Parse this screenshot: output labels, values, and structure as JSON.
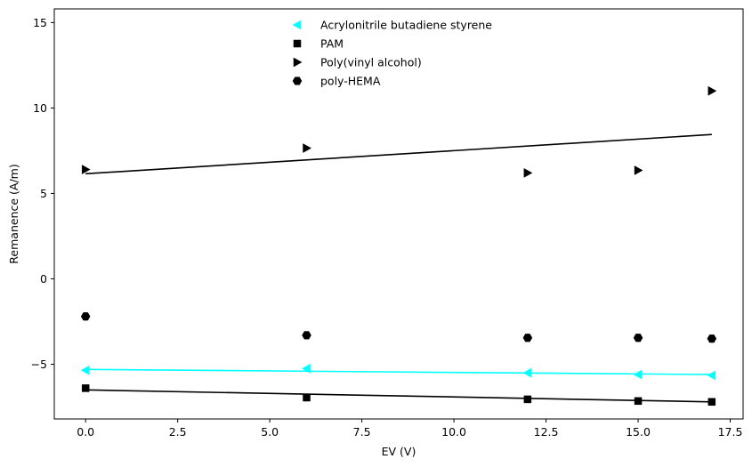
{
  "chart_data": {
    "type": "scatter",
    "xlabel": "EV (V)",
    "ylabel": "Remanence (A/m)",
    "xlim": [
      -0.85,
      17.85
    ],
    "ylim": [
      -8.2,
      15.8
    ],
    "xticks": [
      "0.0",
      "2.5",
      "5.0",
      "7.5",
      "10.0",
      "12.5",
      "15.0",
      "17.5"
    ],
    "xtick_values": [
      0,
      2.5,
      5,
      7.5,
      10,
      12.5,
      15,
      17.5
    ],
    "yticks": [
      "−5",
      "0",
      "5",
      "10",
      "15"
    ],
    "ytick_values": [
      -5,
      0,
      5,
      10,
      15
    ],
    "grid": false,
    "legend_position": "top-center",
    "series": [
      {
        "name": "Acrylonitrile butadiene styrene",
        "marker": "triangle-left",
        "color": "#00ffff",
        "x": [
          0,
          6,
          12,
          15,
          17
        ],
        "y": [
          -5.35,
          -5.25,
          -5.5,
          -5.6,
          -5.65
        ],
        "fit": {
          "x": [
            0,
            17
          ],
          "y": [
            -5.3,
            -5.6
          ],
          "color": "#00ffff"
        }
      },
      {
        "name": "PAM",
        "marker": "square",
        "color": "#000000",
        "x": [
          0,
          6,
          12,
          15,
          17
        ],
        "y": [
          -6.4,
          -6.95,
          -7.05,
          -7.15,
          -7.2
        ],
        "fit": {
          "x": [
            0,
            17
          ],
          "y": [
            -6.5,
            -7.2
          ],
          "color": "#000000"
        }
      },
      {
        "name": "Poly(vinyl alcohol)",
        "marker": "triangle-right",
        "color": "#000000",
        "x": [
          0,
          6,
          12,
          15,
          17
        ],
        "y": [
          6.4,
          7.65,
          6.2,
          6.35,
          11.0
        ],
        "fit": {
          "x": [
            0,
            17
          ],
          "y": [
            6.15,
            8.45
          ],
          "color": "#000000"
        }
      },
      {
        "name": "poly-HEMA",
        "marker": "hexagon",
        "color": "#000000",
        "x": [
          0,
          6,
          12,
          15,
          17
        ],
        "y": [
          -2.2,
          -3.3,
          -3.45,
          -3.45,
          -3.5
        ]
      }
    ]
  }
}
